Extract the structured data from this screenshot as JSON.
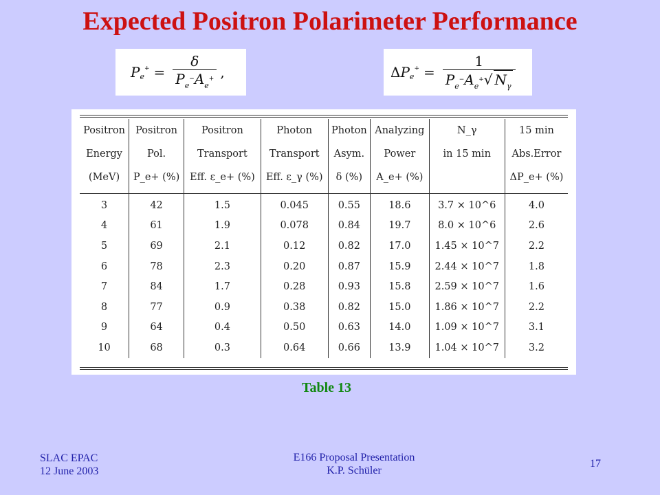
{
  "slide": {
    "title": "Expected Positron Polarimeter Performance",
    "caption": "Table 13",
    "footer_left": [
      "SLAC EPAC",
      "12 June 2003"
    ],
    "footer_center": [
      "E166 Proposal Presentation",
      "K.P. Schüler"
    ],
    "page_number": "17"
  },
  "formulas": {
    "f1": {
      "lhs": "P",
      "lhs_sub": "e",
      "lhs_sup": "+",
      "equals": "=",
      "numerator": "δ",
      "den_a": "P",
      "den_a_sub": "e",
      "den_a_sup": "−",
      "den_b": "A",
      "den_b_sub": "e",
      "den_b_sup": "+",
      "trail": ","
    },
    "f2": {
      "lhs_delta": "Δ",
      "lhs": "P",
      "lhs_sub": "e",
      "lhs_sup": "+",
      "equals": "=",
      "numerator": "1",
      "den_a": "P",
      "den_a_sub": "e",
      "den_a_sup": "−",
      "den_b": "A",
      "den_b_sub": "e",
      "den_b_sup": "+",
      "sqrt_sign": "√",
      "sqrt_arg": "N",
      "sqrt_sub": "γ"
    }
  },
  "table": {
    "headers": [
      [
        "Positron",
        "Energy",
        "(MeV)"
      ],
      [
        "Positron",
        "Pol.",
        "P_e+ (%)"
      ],
      [
        "Positron",
        "Transport",
        "Eff. ε_e+ (%)"
      ],
      [
        "Photon",
        "Transport",
        "Eff. ε_γ (%)"
      ],
      [
        "Photon",
        "Asym.",
        "δ (%)"
      ],
      [
        "Analyzing",
        "Power",
        "A_e+ (%)"
      ],
      [
        "N_γ",
        "in 15 min",
        ""
      ],
      [
        "15 min",
        "Abs.Error",
        "ΔP_e+ (%)"
      ]
    ],
    "rows": [
      [
        "3",
        "42",
        "1.5",
        "0.045",
        "0.55",
        "18.6",
        "3.7 × 10^6",
        "4.0"
      ],
      [
        "4",
        "61",
        "1.9",
        "0.078",
        "0.84",
        "19.7",
        "8.0 × 10^6",
        "2.6"
      ],
      [
        "5",
        "69",
        "2.1",
        "0.12",
        "0.82",
        "17.0",
        "1.45 × 10^7",
        "2.2"
      ],
      [
        "6",
        "78",
        "2.3",
        "0.20",
        "0.87",
        "15.9",
        "2.44 × 10^7",
        "1.8"
      ],
      [
        "7",
        "84",
        "1.7",
        "0.28",
        "0.93",
        "15.8",
        "2.59 × 10^7",
        "1.6"
      ],
      [
        "8",
        "77",
        "0.9",
        "0.38",
        "0.82",
        "15.0",
        "1.86 × 10^7",
        "2.2"
      ],
      [
        "9",
        "64",
        "0.4",
        "0.50",
        "0.63",
        "14.0",
        "1.09 × 10^7",
        "3.1"
      ],
      [
        "10",
        "68",
        "0.3",
        "0.64",
        "0.66",
        "13.9",
        "1.04 × 10^7",
        "3.2"
      ]
    ]
  },
  "colors": {
    "background": "#ccccff",
    "title": "#cc1111",
    "caption": "#118811",
    "footer": "#2222aa"
  }
}
